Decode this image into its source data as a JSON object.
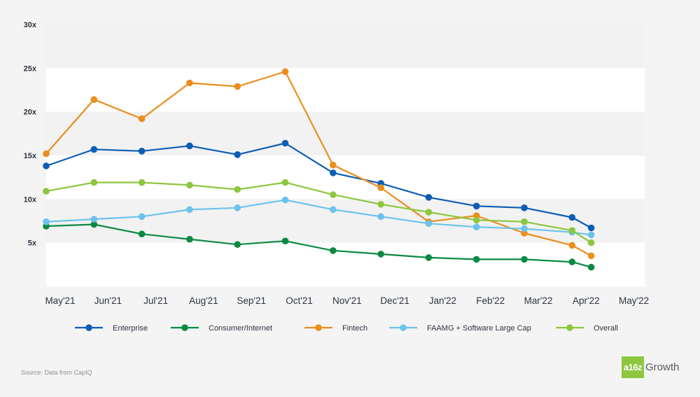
{
  "chart_data": {
    "type": "line",
    "title": "",
    "xlabel": "",
    "ylabel": "",
    "ylim": [
      0,
      30
    ],
    "yticks": [
      5,
      10,
      15,
      20,
      25,
      30
    ],
    "ytick_labels": [
      "5x",
      "10x",
      "15x",
      "20x",
      "25x",
      "30x"
    ],
    "x": [
      "May'21",
      "Jun'21",
      "Jul'21",
      "Aug'21",
      "Sep'21",
      "Oct'21",
      "Nov'21",
      "Dec'21",
      "Jan'22",
      "Feb'22",
      "Mar'22",
      "Apr'22",
      "May'22"
    ],
    "grid": "alternating horizontal bands",
    "legend_position": "bottom",
    "series": [
      {
        "name": "Enterprise",
        "color": "#0c5db5",
        "points": [
          [
            0,
            13.8
          ],
          [
            1,
            15.7
          ],
          [
            2,
            15.5
          ],
          [
            3,
            16.1
          ],
          [
            4,
            15.1
          ],
          [
            5,
            16.4
          ],
          [
            6,
            13.0
          ],
          [
            7,
            11.8
          ],
          [
            8,
            10.2
          ],
          [
            9,
            9.2
          ],
          [
            10,
            9.0
          ],
          [
            11,
            7.9
          ],
          [
            11.4,
            6.7
          ]
        ]
      },
      {
        "name": "Consumer/Internet",
        "color": "#0c8a43",
        "points": [
          [
            0,
            6.9
          ],
          [
            1,
            7.1
          ],
          [
            2,
            6.0
          ],
          [
            3,
            5.4
          ],
          [
            4,
            4.8
          ],
          [
            5,
            5.2
          ],
          [
            6,
            4.1
          ],
          [
            7,
            3.7
          ],
          [
            8,
            3.3
          ],
          [
            9,
            3.1
          ],
          [
            10,
            3.1
          ],
          [
            11,
            2.8
          ],
          [
            11.4,
            2.2
          ]
        ]
      },
      {
        "name": "Fintech",
        "color": "#ea8e1d",
        "points": [
          [
            0,
            15.2
          ],
          [
            1,
            21.4
          ],
          [
            2,
            19.2
          ],
          [
            3,
            23.3
          ],
          [
            4,
            22.9
          ],
          [
            5,
            24.6
          ],
          [
            6,
            13.9
          ],
          [
            7,
            11.3
          ],
          [
            8,
            7.4
          ],
          [
            9,
            8.1
          ],
          [
            10,
            6.1
          ],
          [
            11,
            4.7
          ],
          [
            11.4,
            3.5
          ]
        ]
      },
      {
        "name": "FAAMG + Software Large Cap",
        "color": "#6bc3ec",
        "points": [
          [
            0,
            7.4
          ],
          [
            1,
            7.7
          ],
          [
            2,
            8.0
          ],
          [
            3,
            8.8
          ],
          [
            4,
            9.0
          ],
          [
            5,
            9.9
          ],
          [
            6,
            8.8
          ],
          [
            7,
            8.0
          ],
          [
            8,
            7.2
          ],
          [
            9,
            6.8
          ],
          [
            10,
            6.6
          ],
          [
            11,
            6.2
          ],
          [
            11.4,
            5.9
          ]
        ]
      },
      {
        "name": "Overall",
        "color": "#8dc63f",
        "points": [
          [
            0,
            10.9
          ],
          [
            1,
            11.9
          ],
          [
            2,
            11.9
          ],
          [
            3,
            11.6
          ],
          [
            4,
            11.1
          ],
          [
            5,
            11.9
          ],
          [
            6,
            10.5
          ],
          [
            7,
            9.4
          ],
          [
            8,
            8.5
          ],
          [
            9,
            7.6
          ],
          [
            10,
            7.4
          ],
          [
            11,
            6.4
          ],
          [
            11.4,
            5.0
          ]
        ]
      }
    ]
  },
  "footer": {
    "source": "Source: Data from CapIQ",
    "brand_mark": "a16z",
    "brand_name": "Growth"
  },
  "colors": {
    "background": "#f4f4f4",
    "band_light": "#ffffff",
    "band_dark": "#f2f2f2",
    "text": "#2b3340",
    "brand": "#8dc63f"
  }
}
